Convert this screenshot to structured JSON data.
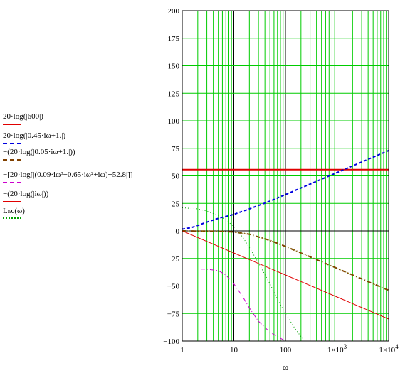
{
  "chart_data": {
    "type": "line",
    "xscale": "log",
    "xlim": [
      1,
      10000
    ],
    "ylim": [
      -100,
      200
    ],
    "x_ticks": [
      {
        "value": 1,
        "label": "1"
      },
      {
        "value": 10,
        "label": "10"
      },
      {
        "value": 100,
        "label": "100"
      },
      {
        "value": 1000,
        "label": "1×10^3"
      },
      {
        "value": 10000,
        "label": "1×10^4"
      }
    ],
    "y_ticks": [
      200,
      175,
      150,
      125,
      100,
      75,
      50,
      25,
      0,
      -25,
      -50,
      -75,
      -100
    ],
    "xlabel": "ω",
    "grid": true,
    "grid_color": "#00cc00",
    "legend_placement": "left",
    "series": [
      {
        "name": "20·log(|600|)",
        "color": "#e00000",
        "style": "solid",
        "width": 2,
        "points": [
          [
            1,
            55.6
          ],
          [
            10000,
            55.6
          ]
        ]
      },
      {
        "name": "20·log(|0.45·iω+1.|)",
        "color": "#0000e0",
        "style": "dashed",
        "width": 2,
        "points": [
          [
            1,
            1.6
          ],
          [
            1.5,
            3.0
          ],
          [
            2,
            5.0
          ],
          [
            3,
            8.0
          ],
          [
            5,
            11.4
          ],
          [
            10,
            15.0
          ],
          [
            20,
            20.0
          ],
          [
            50,
            27.0
          ],
          [
            100,
            33.0
          ],
          [
            1000,
            53.0
          ],
          [
            10000,
            73.0
          ]
        ]
      },
      {
        "name": "−(20·log(|0.05·iω+1.|))",
        "color": "#804000",
        "style": "dashdot",
        "width": 2,
        "points": [
          [
            1,
            0
          ],
          [
            5,
            -0.3
          ],
          [
            10,
            -1
          ],
          [
            20,
            -3
          ],
          [
            50,
            -8.6
          ],
          [
            100,
            -14
          ],
          [
            1000,
            -34
          ],
          [
            10000,
            -54
          ]
        ]
      },
      {
        "name": "−[20·log[|(0.09·iω^3+0.65·iω^2+iω)+52.8|]]",
        "color": "#cc00cc",
        "style": "dashdot",
        "width": 1,
        "points": [
          [
            1,
            -34.5
          ],
          [
            2,
            -34.5
          ],
          [
            3,
            -34.8
          ],
          [
            5,
            -36
          ],
          [
            7,
            -40
          ],
          [
            10,
            -48
          ],
          [
            15,
            -60
          ],
          [
            20,
            -70
          ],
          [
            30,
            -82
          ],
          [
            50,
            -92
          ],
          [
            100,
            -100
          ]
        ]
      },
      {
        "name": "−(20·log(|iω|))",
        "color": "#e00000",
        "style": "solid",
        "width": 1,
        "points": [
          [
            1,
            0
          ],
          [
            10000,
            -80
          ]
        ]
      },
      {
        "name": "L_nc(ω)",
        "color": "#00a000",
        "style": "dotted",
        "width": 1,
        "points": [
          [
            1,
            21
          ],
          [
            2,
            20
          ],
          [
            3,
            18
          ],
          [
            5,
            14
          ],
          [
            7,
            10
          ],
          [
            10,
            4
          ],
          [
            15,
            -6
          ],
          [
            20,
            -15
          ],
          [
            30,
            -29
          ],
          [
            50,
            -48
          ],
          [
            70,
            -62
          ],
          [
            100,
            -75
          ],
          [
            150,
            -88
          ],
          [
            200,
            -96
          ],
          [
            250,
            -100
          ]
        ]
      },
      {
        "name": "",
        "color": "#808000",
        "style": "dotted",
        "width": 1,
        "points": [
          [
            1,
            0
          ],
          [
            5,
            -0.3
          ],
          [
            10,
            -1
          ],
          [
            20,
            -3
          ],
          [
            50,
            -8.6
          ],
          [
            100,
            -14
          ],
          [
            1000,
            -34
          ],
          [
            10000,
            -54
          ]
        ]
      }
    ],
    "legend": [
      {
        "text": "20·log(|600|)",
        "color": "#e00000",
        "style": "solid"
      },
      {
        "text": "20·log(|0.45·iω+1.|)",
        "color": "#0000e0",
        "style": "dashed"
      },
      {
        "text": "−(20·log(|0.05·iω+1.|))",
        "color": "#804000",
        "style": "dashdot"
      },
      {
        "text": "−[20·log[|(0.09·iω³+0.65·iω²+iω)+52.8|]]",
        "color": "#cc00cc",
        "style": "dashdot"
      },
      {
        "text": "−(20·log(|iω|))",
        "color": "#e00000",
        "style": "solid"
      },
      {
        "text": "Lₙc(ω)",
        "color": "#00a000",
        "style": "dotted"
      }
    ]
  }
}
